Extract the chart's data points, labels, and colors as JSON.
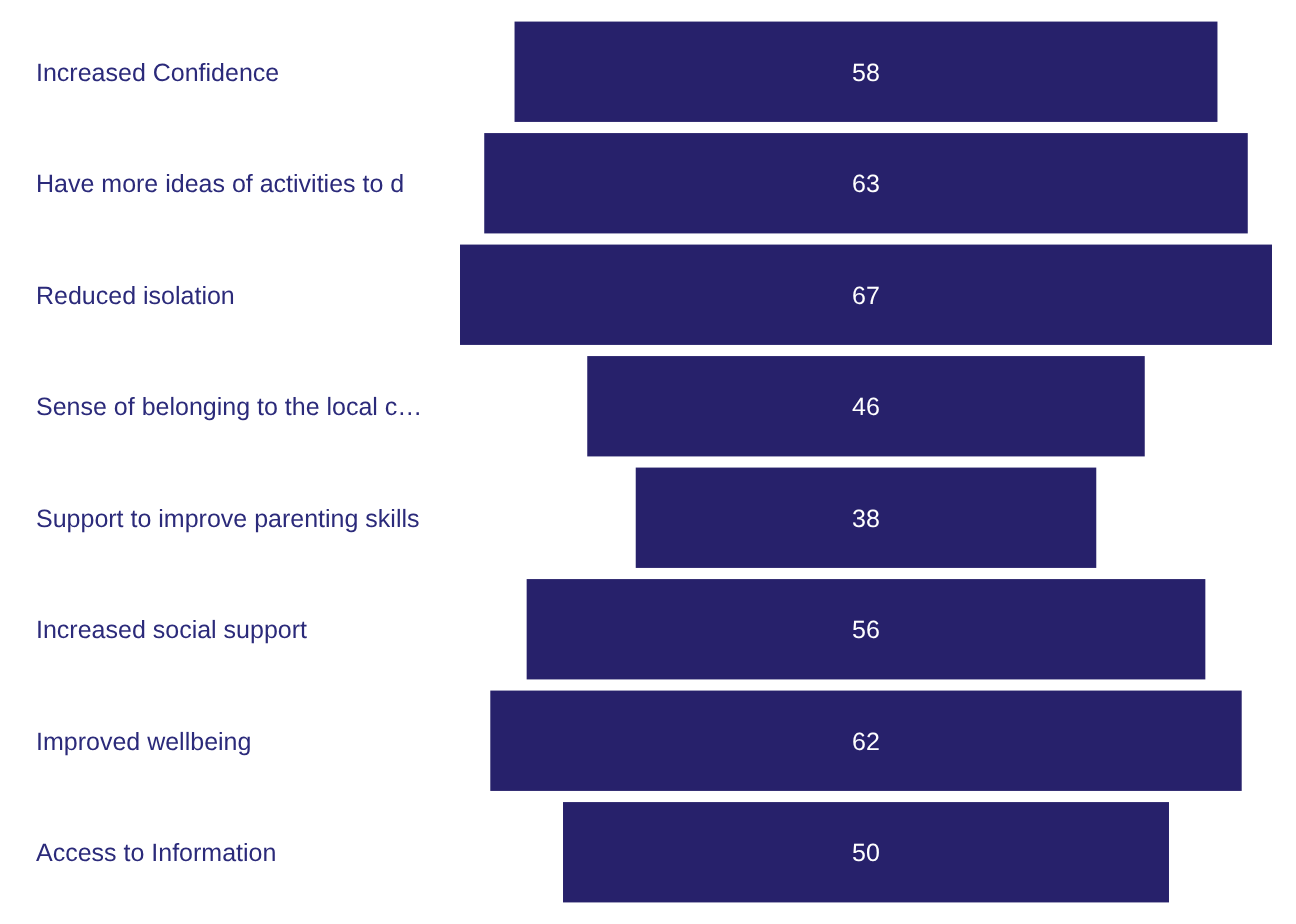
{
  "chart_data": {
    "type": "other",
    "categories": [
      "Increased Confidence",
      "Have more ideas of activities to d",
      "Reduced isolation",
      "Sense of belonging to the local c…",
      "Support to improve parenting skills",
      "Increased social support",
      "Improved wellbeing",
      "Access to Information"
    ],
    "values": [
      58,
      63,
      67,
      46,
      38,
      56,
      62,
      50
    ],
    "color": "#27216b",
    "data_labels": true
  }
}
